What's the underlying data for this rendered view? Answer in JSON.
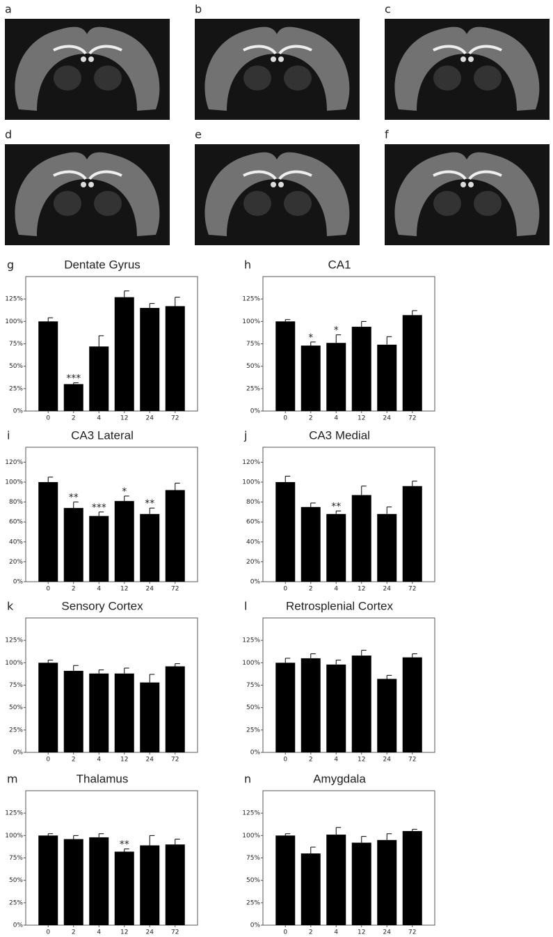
{
  "panels": [
    "a",
    "b",
    "c",
    "d",
    "e",
    "f"
  ],
  "chart_data": [
    {
      "type": "bar",
      "panel": "g",
      "title": "Dentate Gyrus",
      "categories": [
        "0",
        "2",
        "4",
        "12",
        "24",
        "72"
      ],
      "values": [
        100,
        30,
        72,
        127,
        115,
        117
      ],
      "errors": [
        4,
        1.5,
        12,
        7,
        5,
        10
      ],
      "significance": [
        null,
        "***",
        null,
        null,
        null,
        null
      ],
      "color": "#000000",
      "ylim": [
        0,
        150
      ],
      "yticks": [
        {
          "value": 0,
          "label": "0%"
        },
        {
          "value": 25,
          "label": "25%"
        },
        {
          "value": 50,
          "label": "50%"
        },
        {
          "value": 75,
          "label": "75%"
        },
        {
          "value": 100,
          "label": "100%"
        },
        {
          "value": 125,
          "label": "125%"
        }
      ]
    },
    {
      "type": "bar",
      "panel": "h",
      "title": "CA1",
      "categories": [
        "0",
        "2",
        "4",
        "12",
        "24",
        "72"
      ],
      "values": [
        100,
        73,
        76,
        94,
        74,
        107
      ],
      "errors": [
        2,
        4,
        9,
        6,
        9,
        5
      ],
      "significance": [
        null,
        "*",
        "*",
        null,
        null,
        null
      ],
      "color": "#000000",
      "ylim": [
        0,
        150
      ],
      "yticks": [
        {
          "value": 0,
          "label": "0%"
        },
        {
          "value": 25,
          "label": "25%"
        },
        {
          "value": 50,
          "label": "50%"
        },
        {
          "value": 75,
          "label": "75%"
        },
        {
          "value": 100,
          "label": "100%"
        },
        {
          "value": 125,
          "label": "125%"
        }
      ]
    },
    {
      "type": "bar",
      "panel": "i",
      "title": "CA3 Lateral",
      "categories": [
        "0",
        "2",
        "4",
        "12",
        "24",
        "72"
      ],
      "values": [
        100,
        74,
        66,
        81,
        68,
        92
      ],
      "errors": [
        5,
        6,
        4,
        5,
        6,
        7
      ],
      "significance": [
        null,
        "**",
        "***",
        "*",
        "**",
        null
      ],
      "color": "#000000",
      "ylim": [
        0,
        135
      ],
      "yticks": [
        {
          "value": 0,
          "label": "0%"
        },
        {
          "value": 20,
          "label": "20%"
        },
        {
          "value": 40,
          "label": "40%"
        },
        {
          "value": 60,
          "label": "60%"
        },
        {
          "value": 80,
          "label": "80%"
        },
        {
          "value": 100,
          "label": "100%"
        },
        {
          "value": 120,
          "label": "120%"
        }
      ]
    },
    {
      "type": "bar",
      "panel": "j",
      "title": "CA3 Medial",
      "categories": [
        "0",
        "2",
        "4",
        "12",
        "24",
        "72"
      ],
      "values": [
        100,
        75,
        68,
        87,
        68,
        96
      ],
      "errors": [
        6,
        4,
        3,
        9,
        7,
        5
      ],
      "significance": [
        null,
        null,
        "**",
        null,
        null,
        null
      ],
      "color": "#000000",
      "ylim": [
        0,
        135
      ],
      "yticks": [
        {
          "value": 0,
          "label": "0%"
        },
        {
          "value": 20,
          "label": "20%"
        },
        {
          "value": 40,
          "label": "40%"
        },
        {
          "value": 60,
          "label": "60%"
        },
        {
          "value": 80,
          "label": "80%"
        },
        {
          "value": 100,
          "label": "100%"
        },
        {
          "value": 120,
          "label": "120%"
        }
      ]
    },
    {
      "type": "bar",
      "panel": "k",
      "title": "Sensory Cortex",
      "categories": [
        "0",
        "2",
        "4",
        "12",
        "24",
        "72"
      ],
      "values": [
        100,
        91,
        88,
        88,
        78,
        96
      ],
      "errors": [
        3,
        6,
        4,
        6,
        9,
        3
      ],
      "significance": [
        null,
        null,
        null,
        null,
        null,
        null
      ],
      "color": "#000000",
      "ylim": [
        0,
        150
      ],
      "yticks": [
        {
          "value": 0,
          "label": "0%"
        },
        {
          "value": 25,
          "label": "25%"
        },
        {
          "value": 50,
          "label": "50%"
        },
        {
          "value": 75,
          "label": "75%"
        },
        {
          "value": 100,
          "label": "100%"
        },
        {
          "value": 125,
          "label": "125%"
        }
      ]
    },
    {
      "type": "bar",
      "panel": "l",
      "title": "Retrosplenial Cortex",
      "categories": [
        "0",
        "2",
        "4",
        "12",
        "24",
        "72"
      ],
      "values": [
        100,
        105,
        98,
        108,
        82,
        106
      ],
      "errors": [
        5,
        5,
        5,
        6,
        4,
        4
      ],
      "significance": [
        null,
        null,
        null,
        null,
        null,
        null
      ],
      "color": "#000000",
      "ylim": [
        0,
        150
      ],
      "yticks": [
        {
          "value": 0,
          "label": "0%"
        },
        {
          "value": 25,
          "label": "25%"
        },
        {
          "value": 50,
          "label": "50%"
        },
        {
          "value": 75,
          "label": "75%"
        },
        {
          "value": 100,
          "label": "100%"
        },
        {
          "value": 125,
          "label": "125%"
        }
      ]
    },
    {
      "type": "bar",
      "panel": "m",
      "title": "Thalamus",
      "categories": [
        "0",
        "2",
        "4",
        "12",
        "24",
        "72"
      ],
      "values": [
        100,
        96,
        98,
        82,
        89,
        90
      ],
      "errors": [
        2,
        4,
        4,
        3,
        11,
        6
      ],
      "significance": [
        null,
        null,
        null,
        "**",
        null,
        null
      ],
      "color": "#000000",
      "ylim": [
        0,
        150
      ],
      "yticks": [
        {
          "value": 0,
          "label": "0%"
        },
        {
          "value": 25,
          "label": "25%"
        },
        {
          "value": 50,
          "label": "50%"
        },
        {
          "value": 75,
          "label": "75%"
        },
        {
          "value": 100,
          "label": "100%"
        },
        {
          "value": 125,
          "label": "125%"
        }
      ]
    },
    {
      "type": "bar",
      "panel": "n",
      "title": "Amygdala",
      "categories": [
        "0",
        "2",
        "4",
        "12",
        "24",
        "72"
      ],
      "values": [
        100,
        80,
        101,
        92,
        95,
        105
      ],
      "errors": [
        2,
        7,
        8,
        7,
        7,
        2
      ],
      "significance": [
        null,
        null,
        null,
        null,
        null,
        null
      ],
      "color": "#000000",
      "ylim": [
        0,
        150
      ],
      "yticks": [
        {
          "value": 0,
          "label": "0%"
        },
        {
          "value": 25,
          "label": "25%"
        },
        {
          "value": 50,
          "label": "50%"
        },
        {
          "value": 75,
          "label": "75%"
        },
        {
          "value": 100,
          "label": "100%"
        },
        {
          "value": 125,
          "label": "125%"
        }
      ]
    }
  ]
}
